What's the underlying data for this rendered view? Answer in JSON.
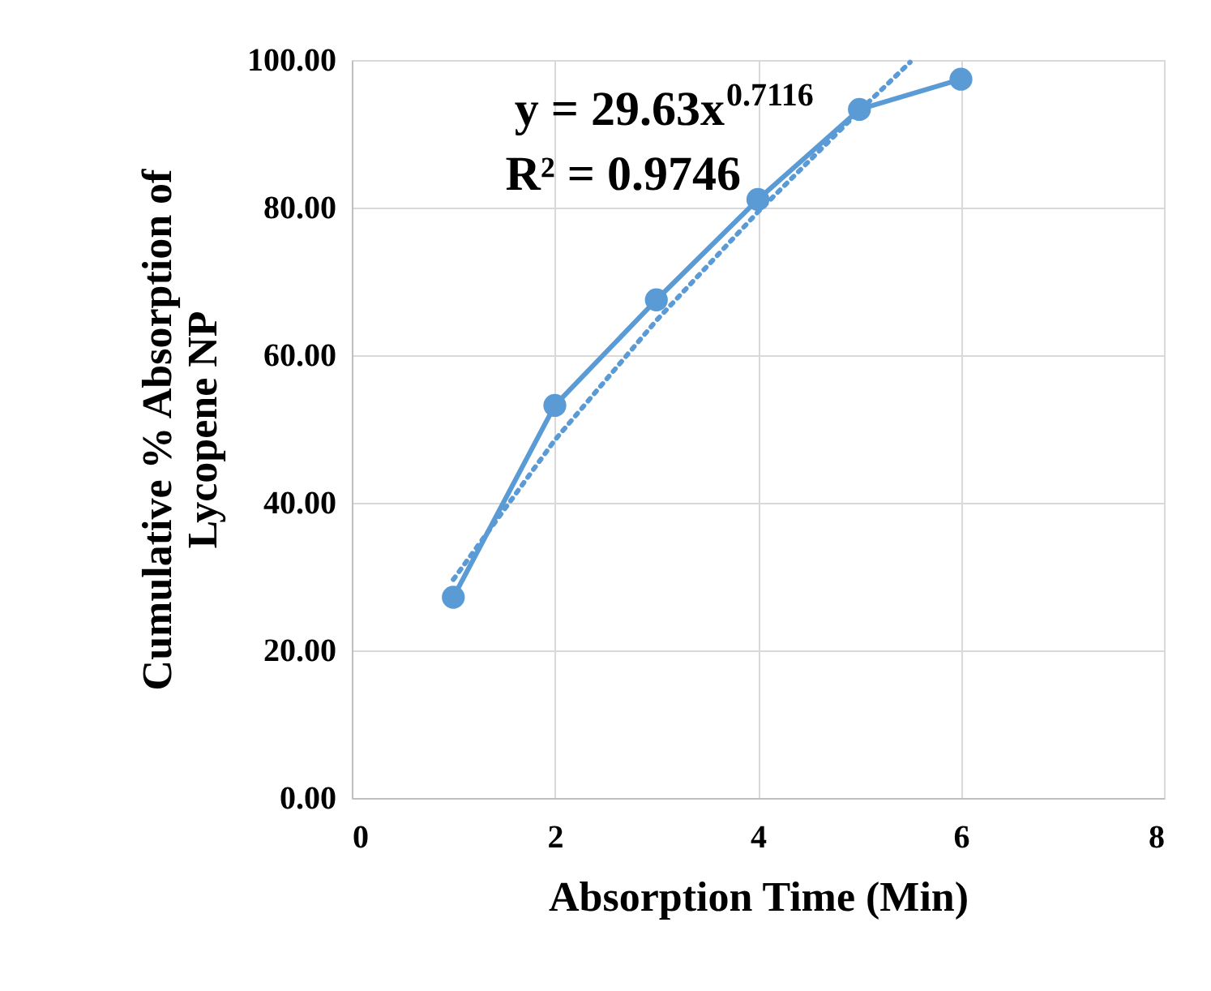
{
  "chart_data": {
    "type": "line",
    "xlabel": "Absorption Time (Min)",
    "ylabel": "Cumulative % Absorption of Lycopene NP",
    "series": [
      {
        "type": "line",
        "color": "#5b9bd5",
        "marker": "circle",
        "line_style": "solid",
        "x": [
          1,
          2,
          3,
          4,
          5,
          6
        ],
        "values": [
          27.2,
          53.2,
          67.5,
          81.1,
          93.3,
          97.4
        ]
      },
      {
        "type": "line",
        "color": "#5b9bd5",
        "marker": "none",
        "line_style": "dotted",
        "x": [
          1,
          2,
          3,
          4,
          5,
          5.5
        ],
        "values": [
          29.6,
          48.5,
          64.7,
          79.4,
          93.1,
          99.7
        ]
      }
    ],
    "annotations": [
      "y = 29.63x$^{0.7116}$",
      "R² = 0.9746"
    ],
    "xlim": [
      0,
      8
    ],
    "xticks": [
      0,
      2,
      4,
      6,
      8
    ],
    "ylim": [
      0,
      100
    ],
    "yticks": [
      {
        "value": 0,
        "label": "0.00"
      },
      {
        "value": 20,
        "label": "20.00"
      },
      {
        "value": 40,
        "label": "40.00"
      },
      {
        "value": 60,
        "label": "60.00"
      },
      {
        "value": 80,
        "label": "80.00"
      },
      {
        "value": 100,
        "label": "100.00"
      }
    ],
    "grid": true
  }
}
